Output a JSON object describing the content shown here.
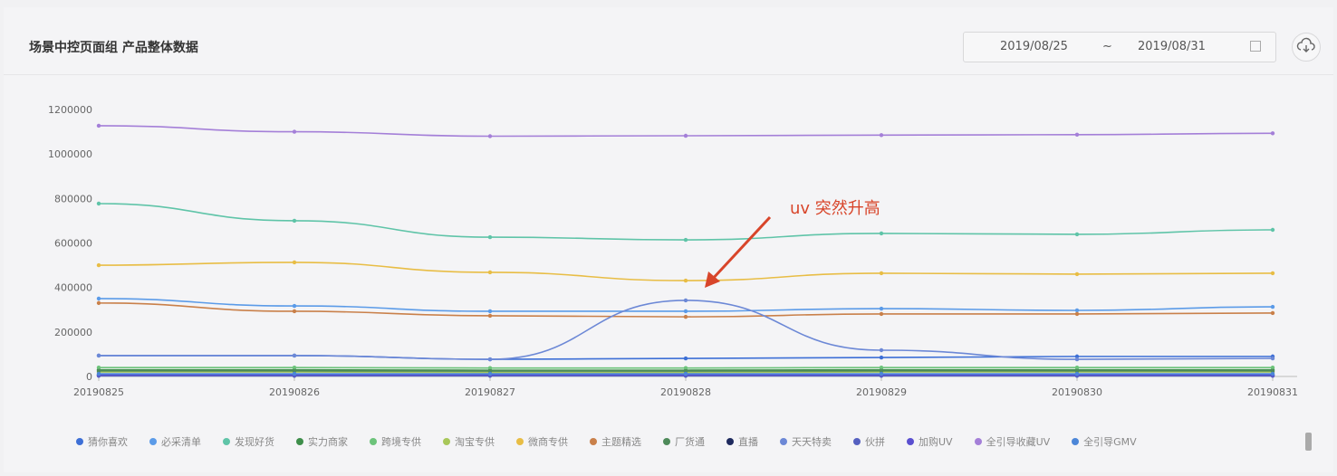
{
  "header": {
    "title": "场景中控页面组 产品整体数据",
    "date_start": "2019/08/25",
    "date_sep": "~",
    "date_end": "2019/08/31",
    "calendar_icon": "calendar-icon",
    "download_icon": "cloud-download-icon"
  },
  "annotation": {
    "text": "uv 突然升高",
    "color": "#d8452a"
  },
  "chart_data": {
    "type": "line",
    "categories": [
      "20190825",
      "20190826",
      "20190827",
      "20190828",
      "20190829",
      "20190830",
      "20190831"
    ],
    "yticks": [
      "0",
      "200000",
      "400000",
      "600000",
      "800000",
      "1000000",
      "1200000"
    ],
    "ylim": [
      0,
      1200000
    ],
    "legend_position": "bottom",
    "series": [
      {
        "name": "猜你喜欢",
        "color": "#3d6fd6",
        "values": [
          94000,
          94000,
          77000,
          81000,
          85000,
          90000,
          90000
        ]
      },
      {
        "name": "必采清单",
        "color": "#5b9be8",
        "values": [
          350000,
          317000,
          293000,
          293000,
          305000,
          297000,
          313000
        ]
      },
      {
        "name": "发现好货",
        "color": "#5fc4a8",
        "values": [
          777000,
          700000,
          626000,
          614000,
          643000,
          639000,
          659000
        ]
      },
      {
        "name": "实力商家",
        "color": "#3e8e4a",
        "values": [
          30000,
          30000,
          28000,
          28000,
          30000,
          30000,
          30000
        ]
      },
      {
        "name": "跨境专供",
        "color": "#6cc37a",
        "values": [
          40000,
          40000,
          38000,
          38000,
          40000,
          40000,
          40000
        ]
      },
      {
        "name": "淘宝专供",
        "color": "#a8c75a",
        "values": [
          20000,
          20000,
          18000,
          18000,
          20000,
          20000,
          20000
        ]
      },
      {
        "name": "微商专供",
        "color": "#e8bd45",
        "values": [
          500000,
          513000,
          468000,
          431000,
          464000,
          460000,
          464000
        ]
      },
      {
        "name": "主题精选",
        "color": "#c9804a",
        "values": [
          330000,
          293000,
          273000,
          268000,
          281000,
          281000,
          285000
        ]
      },
      {
        "name": "厂货通",
        "color": "#4e8a5a",
        "values": [
          25000,
          25000,
          24000,
          24000,
          25000,
          25000,
          25000
        ]
      },
      {
        "name": "直播",
        "color": "#1e2a5e",
        "values": [
          5000,
          5000,
          5000,
          5000,
          5000,
          5000,
          5000
        ]
      },
      {
        "name": "天天特卖",
        "color": "#6c88d6",
        "values": [
          94000,
          94000,
          77000,
          342000,
          118000,
          77000,
          81000
        ]
      },
      {
        "name": "伙拼",
        "color": "#5560c0",
        "values": [
          3000,
          3000,
          3000,
          3000,
          3000,
          3000,
          3000
        ]
      },
      {
        "name": "加购UV",
        "color": "#5a4fd0",
        "values": [
          8000,
          8000,
          8000,
          8000,
          8000,
          8000,
          8000
        ]
      },
      {
        "name": "全引导收藏UV",
        "color": "#a47fd8",
        "values": [
          1127000,
          1100000,
          1080000,
          1082000,
          1085000,
          1087000,
          1093000
        ]
      },
      {
        "name": "全引导GMV",
        "color": "#4c86d8",
        "values": [
          12000,
          12000,
          12000,
          12000,
          12000,
          12000,
          12000
        ]
      }
    ]
  }
}
